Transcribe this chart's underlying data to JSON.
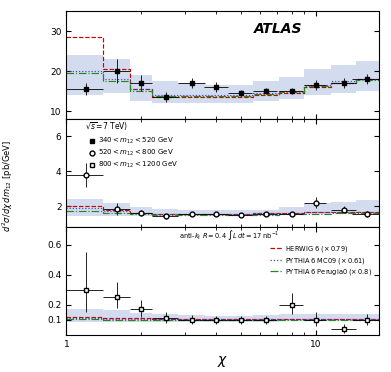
{
  "chi_centers": [
    1.2,
    1.6,
    2.0,
    2.5,
    3.2,
    4.0,
    5.0,
    6.3,
    8.0,
    10.0,
    13.0,
    16.0
  ],
  "chi_edges": [
    1.0,
    1.4,
    1.8,
    2.2,
    2.8,
    3.6,
    4.5,
    5.6,
    7.1,
    9.0,
    11.5,
    14.5,
    18.0
  ],
  "panel1": {
    "ylim": [
      8,
      35
    ],
    "yticks": [
      10,
      20,
      30
    ],
    "data_y": [
      15.5,
      20.0,
      17.0,
      13.5,
      17.0,
      16.0,
      14.5,
      15.0,
      15.0,
      16.5,
      17.0,
      18.0
    ],
    "data_yerr_lo": [
      1.5,
      3.0,
      2.0,
      1.2,
      1.2,
      1.2,
      0.8,
      0.8,
      0.8,
      1.2,
      1.2,
      1.2
    ],
    "data_yerr_hi": [
      1.5,
      3.0,
      2.0,
      1.2,
      1.2,
      1.2,
      0.8,
      0.8,
      0.8,
      1.2,
      1.2,
      1.2
    ],
    "data_xerr": [
      0.2,
      0.2,
      0.2,
      0.3,
      0.4,
      0.45,
      0.55,
      0.7,
      0.9,
      1.0,
      1.5,
      2.0
    ],
    "theory_band_lo": [
      14.0,
      14.5,
      12.5,
      12.0,
      12.0,
      12.0,
      12.0,
      12.5,
      13.0,
      14.0,
      14.5,
      15.0
    ],
    "theory_band_hi": [
      24.0,
      23.0,
      19.0,
      17.5,
      17.0,
      16.5,
      16.5,
      17.5,
      18.5,
      20.5,
      21.5,
      22.5
    ],
    "herwig_y": [
      28.5,
      20.5,
      15.5,
      13.5,
      13.5,
      13.5,
      13.5,
      14.0,
      14.5,
      16.0,
      17.0,
      18.0
    ],
    "pythia_mc09_y": [
      20.0,
      18.0,
      15.5,
      14.0,
      14.0,
      14.0,
      14.0,
      14.5,
      15.0,
      16.5,
      17.5,
      18.0
    ],
    "pythia_p0_y": [
      19.5,
      17.5,
      15.0,
      13.8,
      13.8,
      13.8,
      13.8,
      14.2,
      14.8,
      16.2,
      17.0,
      17.8
    ]
  },
  "panel2": {
    "ylim": [
      0.8,
      7.0
    ],
    "yticks": [
      2,
      4,
      6
    ],
    "data_y": [
      3.8,
      1.85,
      1.6,
      1.4,
      1.55,
      1.55,
      1.5,
      1.55,
      1.55,
      2.2,
      1.8,
      1.55
    ],
    "data_yerr_lo": [
      0.7,
      0.35,
      0.2,
      0.15,
      0.12,
      0.12,
      0.1,
      0.1,
      0.1,
      0.3,
      0.2,
      0.18
    ],
    "data_yerr_hi": [
      0.7,
      0.35,
      0.2,
      0.15,
      0.12,
      0.12,
      0.1,
      0.1,
      0.1,
      0.3,
      0.2,
      0.18
    ],
    "data_xerr": [
      0.2,
      0.2,
      0.2,
      0.3,
      0.4,
      0.45,
      0.55,
      0.7,
      0.9,
      1.0,
      1.5,
      2.0
    ],
    "theory_band_lo": [
      1.45,
      1.45,
      1.4,
      1.4,
      1.4,
      1.4,
      1.4,
      1.42,
      1.48,
      1.55,
      1.58,
      1.58
    ],
    "theory_band_hi": [
      2.4,
      2.15,
      1.95,
      1.85,
      1.8,
      1.75,
      1.75,
      1.8,
      1.95,
      2.15,
      2.25,
      2.35
    ],
    "herwig_y": [
      2.0,
      1.75,
      1.6,
      1.55,
      1.55,
      1.55,
      1.55,
      1.58,
      1.6,
      1.65,
      1.68,
      1.68
    ],
    "pythia_mc09_y": [
      1.9,
      1.7,
      1.6,
      1.55,
      1.55,
      1.55,
      1.55,
      1.58,
      1.6,
      1.65,
      1.68,
      1.68
    ],
    "pythia_p0_y": [
      1.7,
      1.6,
      1.52,
      1.48,
      1.48,
      1.48,
      1.48,
      1.5,
      1.52,
      1.55,
      1.58,
      1.58
    ]
  },
  "panel3": {
    "ylim": [
      0.0,
      0.72
    ],
    "yticks": [
      0.1,
      0.2,
      0.4,
      0.6
    ],
    "data_y": [
      0.3,
      0.25,
      0.17,
      0.115,
      0.1,
      0.1,
      0.1,
      0.1,
      0.2,
      0.1,
      0.04,
      0.1
    ],
    "data_yerr_lo": [
      0.15,
      0.07,
      0.05,
      0.035,
      0.03,
      0.025,
      0.025,
      0.025,
      0.06,
      0.04,
      0.03,
      0.035
    ],
    "data_yerr_hi": [
      0.25,
      0.1,
      0.06,
      0.04,
      0.035,
      0.028,
      0.028,
      0.028,
      0.08,
      0.05,
      0.03,
      0.04
    ],
    "data_xerr": [
      0.2,
      0.2,
      0.2,
      0.3,
      0.4,
      0.45,
      0.55,
      0.7,
      0.9,
      1.0,
      1.5,
      2.0
    ],
    "theory_band_lo": [
      0.088,
      0.088,
      0.088,
      0.088,
      0.088,
      0.088,
      0.088,
      0.088,
      0.09,
      0.092,
      0.092,
      0.092
    ],
    "theory_band_hi": [
      0.175,
      0.165,
      0.148,
      0.138,
      0.13,
      0.128,
      0.128,
      0.13,
      0.138,
      0.142,
      0.142,
      0.142
    ],
    "herwig_y": [
      0.12,
      0.115,
      0.11,
      0.108,
      0.108,
      0.108,
      0.108,
      0.108,
      0.108,
      0.108,
      0.108,
      0.108
    ],
    "pythia_mc09_y": [
      0.112,
      0.108,
      0.104,
      0.103,
      0.103,
      0.103,
      0.103,
      0.103,
      0.103,
      0.103,
      0.103,
      0.103
    ],
    "pythia_p0_y": [
      0.104,
      0.1,
      0.098,
      0.097,
      0.097,
      0.097,
      0.097,
      0.097,
      0.097,
      0.097,
      0.097,
      0.097
    ]
  },
  "band_color": "#b0c0e0",
  "band_alpha": 0.55,
  "herwig_color": "#cc0000",
  "pythia_mc09_color": "#4444cc",
  "pythia_p0_color": "#228822"
}
